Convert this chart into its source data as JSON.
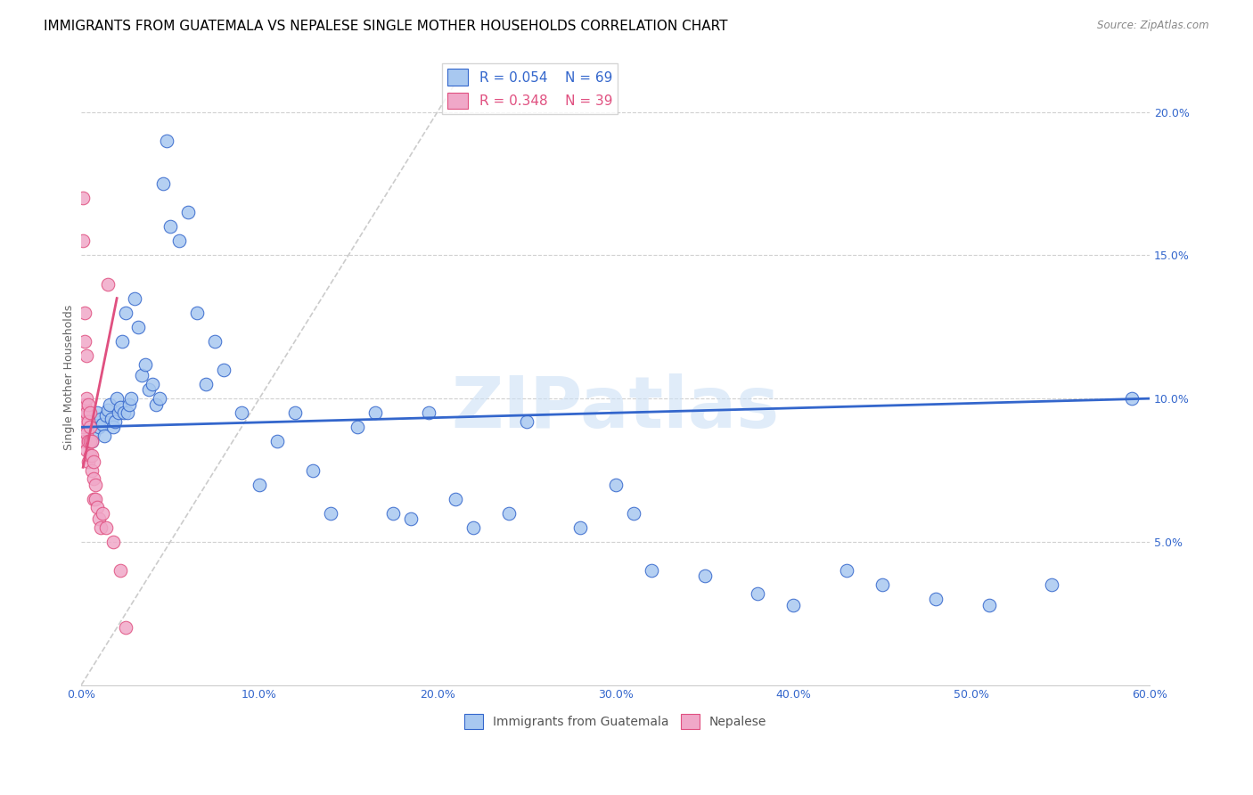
{
  "title": "IMMIGRANTS FROM GUATEMALA VS NEPALESE SINGLE MOTHER HOUSEHOLDS CORRELATION CHART",
  "source": "Source: ZipAtlas.com",
  "xlabel_blue": "Immigrants from Guatemala",
  "xlabel_pink": "Nepalese",
  "ylabel": "Single Mother Households",
  "xlim": [
    0.0,
    0.6
  ],
  "ylim": [
    0.0,
    0.215
  ],
  "xticks": [
    0.0,
    0.1,
    0.2,
    0.3,
    0.4,
    0.5,
    0.6
  ],
  "xticklabels": [
    "0.0%",
    "10.0%",
    "20.0%",
    "30.0%",
    "40.0%",
    "50.0%",
    "60.0%"
  ],
  "yticks_right": [
    0.05,
    0.1,
    0.15,
    0.2
  ],
  "yticklabels_right": [
    "5.0%",
    "10.0%",
    "15.0%",
    "20.0%"
  ],
  "legend_blue_r": "R = 0.054",
  "legend_blue_n": "N = 69",
  "legend_pink_r": "R = 0.348",
  "legend_pink_n": "N = 39",
  "blue_color": "#a8c8f0",
  "pink_color": "#f0a8c8",
  "blue_line_color": "#3366cc",
  "pink_line_color": "#e05080",
  "diag_line_color": "#cccccc",
  "watermark": "ZIPatlas",
  "title_fontsize": 11,
  "axis_label_fontsize": 9,
  "tick_fontsize": 9,
  "blue_scatter_x": [
    0.005,
    0.006,
    0.007,
    0.008,
    0.009,
    0.01,
    0.011,
    0.012,
    0.013,
    0.014,
    0.015,
    0.016,
    0.017,
    0.018,
    0.019,
    0.02,
    0.021,
    0.022,
    0.023,
    0.024,
    0.025,
    0.026,
    0.027,
    0.028,
    0.03,
    0.032,
    0.034,
    0.036,
    0.038,
    0.04,
    0.042,
    0.044,
    0.046,
    0.048,
    0.05,
    0.055,
    0.06,
    0.065,
    0.07,
    0.075,
    0.08,
    0.09,
    0.1,
    0.11,
    0.12,
    0.13,
    0.14,
    0.155,
    0.165,
    0.175,
    0.185,
    0.195,
    0.21,
    0.22,
    0.24,
    0.25,
    0.28,
    0.3,
    0.31,
    0.32,
    0.35,
    0.38,
    0.4,
    0.43,
    0.45,
    0.48,
    0.51,
    0.545,
    0.59
  ],
  "blue_scatter_y": [
    0.09,
    0.085,
    0.088,
    0.092,
    0.095,
    0.09,
    0.093,
    0.091,
    0.087,
    0.094,
    0.096,
    0.098,
    0.093,
    0.09,
    0.092,
    0.1,
    0.095,
    0.097,
    0.12,
    0.095,
    0.13,
    0.095,
    0.098,
    0.1,
    0.135,
    0.125,
    0.108,
    0.112,
    0.103,
    0.105,
    0.098,
    0.1,
    0.175,
    0.19,
    0.16,
    0.155,
    0.165,
    0.13,
    0.105,
    0.12,
    0.11,
    0.095,
    0.07,
    0.085,
    0.095,
    0.075,
    0.06,
    0.09,
    0.095,
    0.06,
    0.058,
    0.095,
    0.065,
    0.055,
    0.06,
    0.092,
    0.055,
    0.07,
    0.06,
    0.04,
    0.038,
    0.032,
    0.028,
    0.04,
    0.035,
    0.03,
    0.028,
    0.035,
    0.1
  ],
  "pink_scatter_x": [
    0.001,
    0.001,
    0.001,
    0.001,
    0.002,
    0.002,
    0.002,
    0.002,
    0.002,
    0.003,
    0.003,
    0.003,
    0.003,
    0.003,
    0.004,
    0.004,
    0.004,
    0.004,
    0.005,
    0.005,
    0.005,
    0.005,
    0.006,
    0.006,
    0.006,
    0.007,
    0.007,
    0.007,
    0.008,
    0.008,
    0.009,
    0.01,
    0.011,
    0.012,
    0.014,
    0.015,
    0.018,
    0.022,
    0.025
  ],
  "pink_scatter_y": [
    0.17,
    0.155,
    0.095,
    0.09,
    0.13,
    0.12,
    0.098,
    0.092,
    0.085,
    0.115,
    0.1,
    0.095,
    0.088,
    0.082,
    0.098,
    0.092,
    0.085,
    0.078,
    0.095,
    0.09,
    0.085,
    0.08,
    0.085,
    0.08,
    0.075,
    0.078,
    0.072,
    0.065,
    0.07,
    0.065,
    0.062,
    0.058,
    0.055,
    0.06,
    0.055,
    0.14,
    0.05,
    0.04,
    0.02
  ],
  "blue_trendline_x": [
    0.0,
    0.6
  ],
  "blue_trendline_y": [
    0.09,
    0.1
  ],
  "pink_trendline_x": [
    0.001,
    0.02
  ],
  "pink_trendline_y": [
    0.076,
    0.135
  ]
}
